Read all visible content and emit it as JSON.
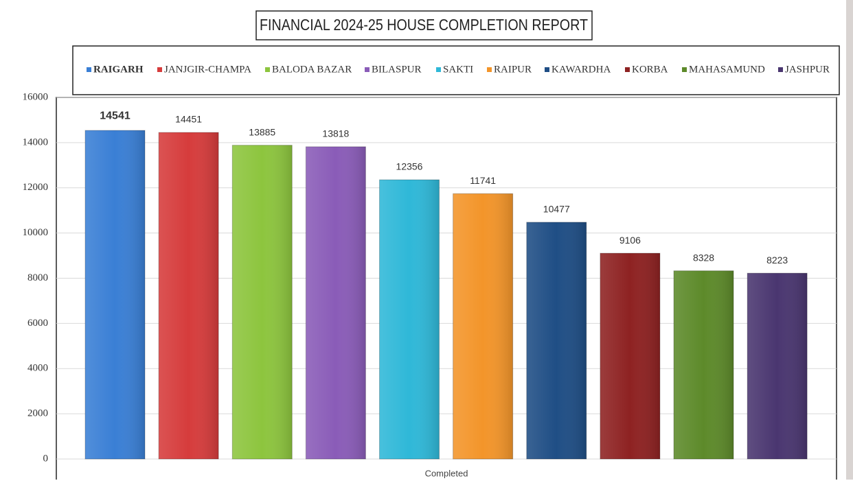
{
  "chart_data": {
    "type": "bar",
    "title": "FINANCIAL 2024-25 HOUSE COMPLETION REPORT",
    "categories": [
      "Completed"
    ],
    "series": [
      {
        "name": "RAIGARH",
        "color": "#3a7fd5",
        "values": [
          14541
        ]
      },
      {
        "name": "JANJGIR-CHAMPA",
        "color": "#d63c3c",
        "values": [
          14451
        ]
      },
      {
        "name": "BALODA BAZAR",
        "color": "#8dc53e",
        "values": [
          13885
        ]
      },
      {
        "name": "BILASPUR",
        "color": "#8a5cb8",
        "values": [
          13818
        ]
      },
      {
        "name": "SAKTI",
        "color": "#2fb8d8",
        "values": [
          12356
        ]
      },
      {
        "name": "RAIPUR",
        "color": "#f3952a",
        "values": [
          11741
        ]
      },
      {
        "name": "KAWARDHA",
        "color": "#1f4e85",
        "values": [
          10477
        ]
      },
      {
        "name": "KORBA",
        "color": "#8e2222",
        "values": [
          9106
        ]
      },
      {
        "name": "MAHASAMUND",
        "color": "#5d8a2a",
        "values": [
          8328
        ]
      },
      {
        "name": "JASHPUR",
        "color": "#4a3670",
        "values": [
          8223
        ]
      }
    ],
    "ylim": [
      0,
      16000
    ],
    "yticks": [
      0,
      2000,
      4000,
      6000,
      8000,
      10000,
      12000,
      14000,
      16000
    ],
    "grid": true,
    "legend": "top"
  }
}
